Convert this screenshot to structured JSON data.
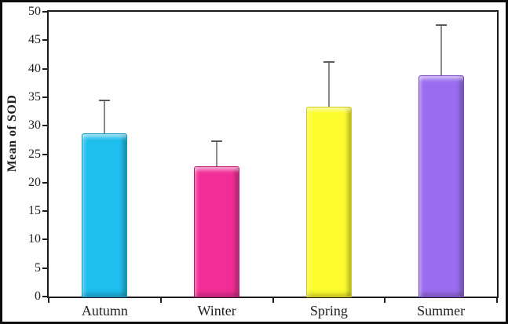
{
  "figure": {
    "background": "#ffffff",
    "border_color": "#0d0d0d"
  },
  "chart_data": {
    "type": "bar",
    "title": "",
    "categories": [
      "Autumn",
      "Winter",
      "Spring",
      "Summer"
    ],
    "values": [
      28.7,
      22.8,
      33.3,
      38.8
    ],
    "error_upper": [
      5.8,
      4.5,
      7.9,
      8.8
    ],
    "bar_colors": [
      "#1FBEEC",
      "#F12E96",
      "#FDFD2E",
      "#9A6CEF"
    ],
    "bar_border_colors": [
      "#0C93BF",
      "#C01272",
      "#CFCB14",
      "#7647C8"
    ],
    "xlabel": "",
    "ylabel": "Mean of SOD",
    "ylim": [
      0,
      50
    ],
    "ytick_step": 5,
    "yticks": [
      "0",
      "5",
      "10",
      "15",
      "20",
      "25",
      "30",
      "35",
      "40",
      "45",
      "50"
    ],
    "grid": false,
    "legend": null,
    "error_bar_line_color": "#8C8C8C",
    "error_bar_cap_color": "#5A5A5A",
    "axis_color": "#1b1b1b",
    "text_color": "#1f1f1f"
  }
}
